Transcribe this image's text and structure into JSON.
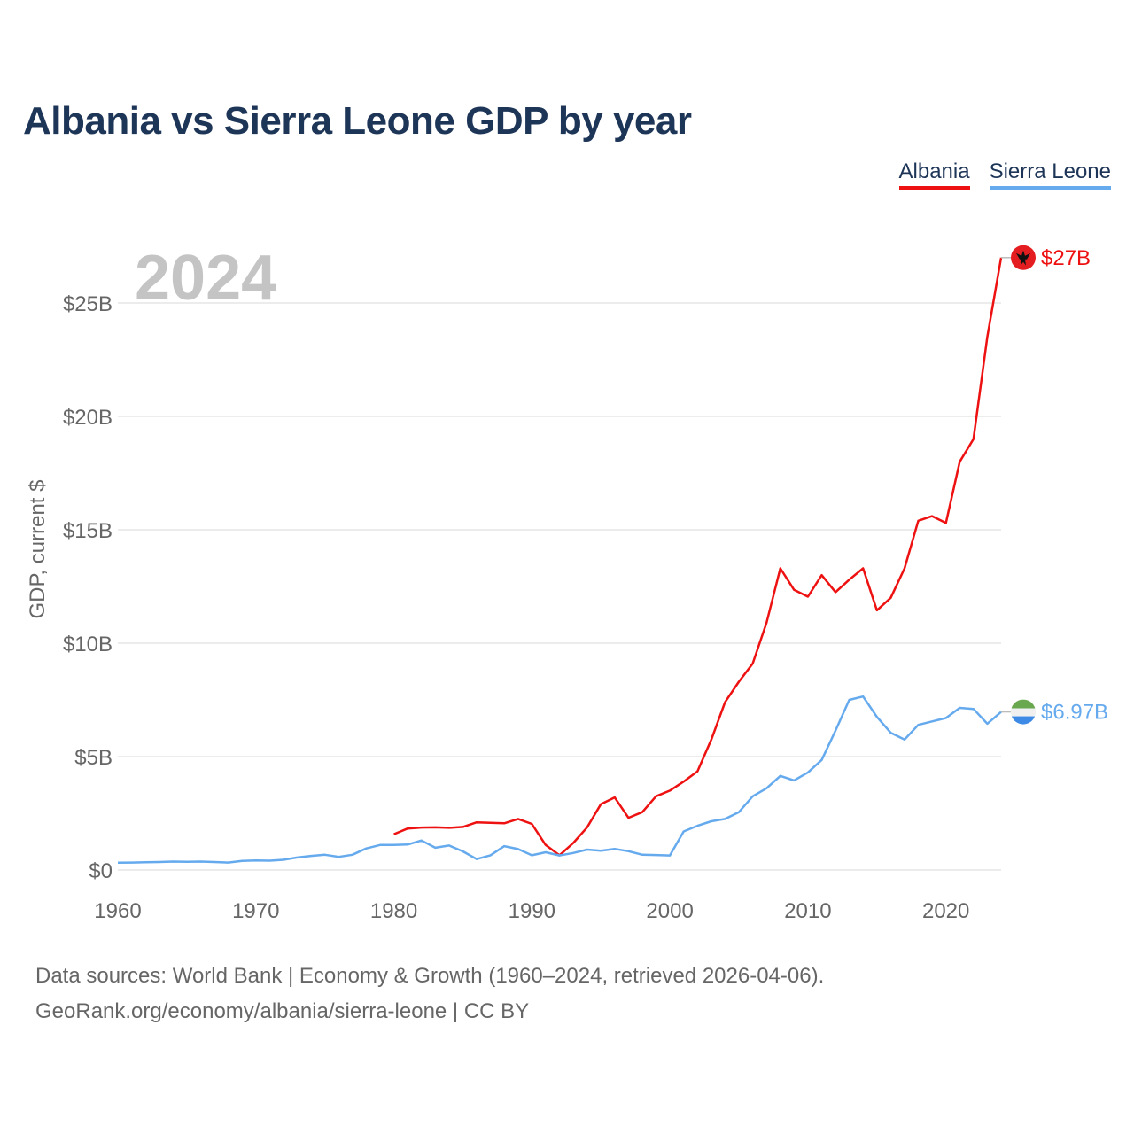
{
  "title": "Albania vs Sierra Leone GDP by year",
  "legend": {
    "albania": "Albania",
    "sierra_leone": "Sierra Leone"
  },
  "year_watermark": "2024",
  "source": {
    "line1": "Data sources: World Bank | Economy & Growth (1960–2024, retrieved 2026-04-06).",
    "line2": "GeoRank.org/economy/albania/sierra-leone | CC BY"
  },
  "colors": {
    "albania": "#ee1111",
    "sierra_leone": "#66aaee",
    "grid": "#e6e6e6",
    "axis_text": "#666666"
  },
  "chart_data": {
    "type": "line",
    "title": "Albania vs Sierra Leone GDP by year",
    "xlabel": "",
    "ylabel": "GDP, current $",
    "xlim": [
      1960,
      2024
    ],
    "ylim": [
      0,
      27
    ],
    "x_ticks": [
      1960,
      1970,
      1980,
      1990,
      2000,
      2010,
      2020
    ],
    "x_tick_labels": [
      "1960",
      "1970",
      "1980",
      "1990",
      "2000",
      "2010",
      "2020"
    ],
    "y_ticks": [
      0,
      5,
      10,
      15,
      20,
      25
    ],
    "y_tick_labels": [
      "$0",
      "$5B",
      "$10B",
      "$15B",
      "$20B",
      "$25B"
    ],
    "grid": true,
    "series": [
      {
        "name": "Albania",
        "end_label": "$27B",
        "x": [
          1980,
          1981,
          1982,
          1983,
          1984,
          1985,
          1986,
          1987,
          1988,
          1989,
          1990,
          1991,
          1992,
          1993,
          1994,
          1995,
          1996,
          1997,
          1998,
          1999,
          2000,
          2001,
          2002,
          2003,
          2004,
          2005,
          2006,
          2007,
          2008,
          2009,
          2010,
          2011,
          2012,
          2013,
          2014,
          2015,
          2016,
          2017,
          2018,
          2019,
          2020,
          2021,
          2022,
          2023,
          2024
        ],
        "values": [
          1.58,
          1.83,
          1.87,
          1.88,
          1.86,
          1.9,
          2.1,
          2.08,
          2.06,
          2.25,
          2.03,
          1.1,
          0.65,
          1.19,
          1.88,
          2.9,
          3.2,
          2.3,
          2.55,
          3.25,
          3.5,
          3.9,
          4.35,
          5.75,
          7.4,
          8.3,
          9.1,
          10.9,
          13.3,
          12.35,
          12.05,
          13.0,
          12.25,
          12.8,
          13.3,
          11.45,
          12.0,
          13.3,
          15.4,
          15.6,
          15.3,
          18.0,
          19.0,
          23.5,
          27.0
        ]
      },
      {
        "name": "Sierra Leone",
        "end_label": "$6.97B",
        "x": [
          1960,
          1961,
          1962,
          1963,
          1964,
          1965,
          1966,
          1967,
          1968,
          1969,
          1970,
          1971,
          1972,
          1973,
          1974,
          1975,
          1976,
          1977,
          1978,
          1979,
          1980,
          1981,
          1982,
          1983,
          1984,
          1985,
          1986,
          1987,
          1988,
          1989,
          1990,
          1991,
          1992,
          1993,
          1994,
          1995,
          1996,
          1997,
          1998,
          1999,
          2000,
          2001,
          2002,
          2003,
          2004,
          2005,
          2006,
          2007,
          2008,
          2009,
          2010,
          2011,
          2012,
          2013,
          2014,
          2015,
          2016,
          2017,
          2018,
          2019,
          2020,
          2021,
          2022,
          2023,
          2024
        ],
        "values": [
          0.32,
          0.33,
          0.34,
          0.35,
          0.37,
          0.36,
          0.37,
          0.35,
          0.33,
          0.4,
          0.42,
          0.41,
          0.45,
          0.55,
          0.62,
          0.67,
          0.58,
          0.67,
          0.95,
          1.1,
          1.1,
          1.12,
          1.3,
          0.98,
          1.08,
          0.82,
          0.48,
          0.65,
          1.05,
          0.92,
          0.65,
          0.78,
          0.64,
          0.75,
          0.9,
          0.85,
          0.93,
          0.83,
          0.67,
          0.66,
          0.64,
          1.7,
          1.95,
          2.15,
          2.25,
          2.55,
          3.25,
          3.6,
          4.15,
          3.95,
          4.3,
          4.85,
          6.15,
          7.5,
          7.65,
          6.75,
          6.05,
          5.75,
          6.4,
          6.55,
          6.7,
          7.15,
          7.1,
          6.45,
          6.97
        ]
      }
    ]
  }
}
